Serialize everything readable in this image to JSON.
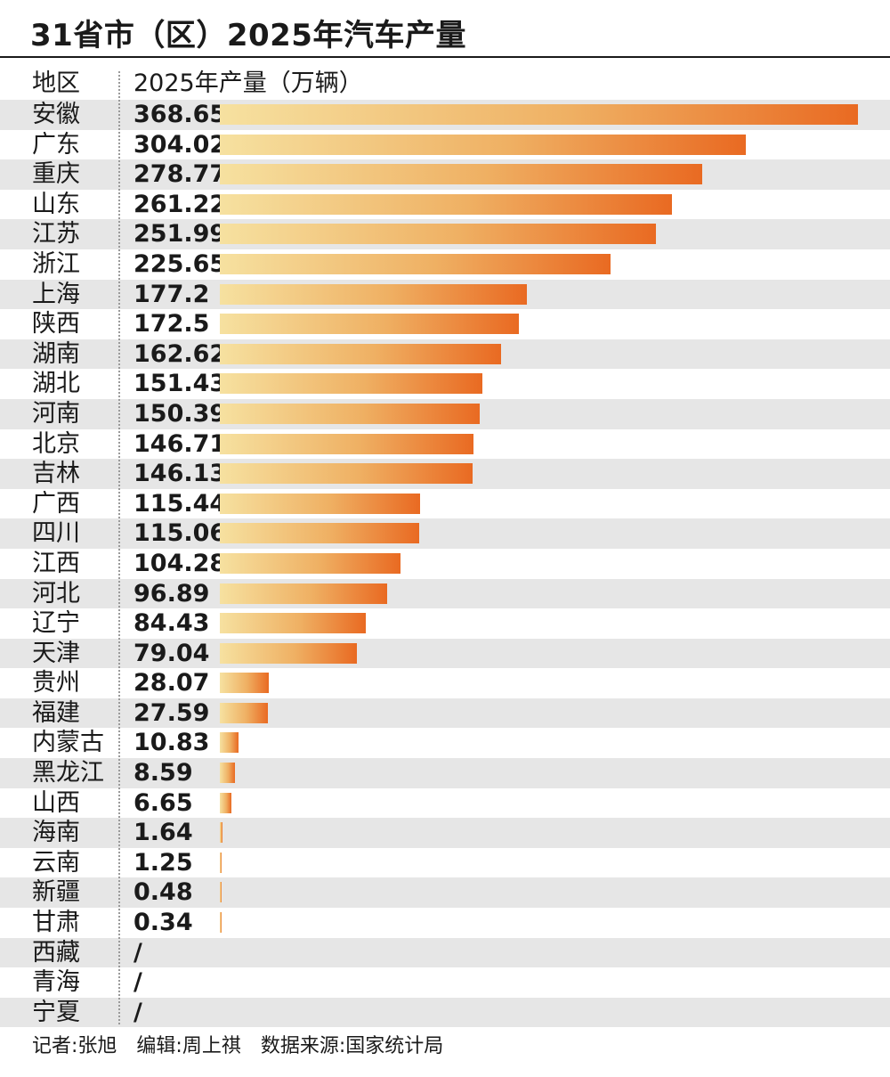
{
  "chart_data": {
    "type": "bar",
    "orientation": "horizontal",
    "title": "31省市（区）2025年汽车产量",
    "column_headers": [
      "地区",
      "2025年产量（万辆）"
    ],
    "categories": [
      "安徽",
      "广东",
      "重庆",
      "山东",
      "江苏",
      "浙江",
      "上海",
      "陕西",
      "湖南",
      "湖北",
      "河南",
      "北京",
      "吉林",
      "广西",
      "四川",
      "江西",
      "河北",
      "辽宁",
      "天津",
      "贵州",
      "福建",
      "内蒙古",
      "黑龙江",
      "山西",
      "海南",
      "云南",
      "新疆",
      "甘肃",
      "西藏",
      "青海",
      "宁夏"
    ],
    "value_labels": [
      "368.65",
      "304.02",
      "278.77",
      "261.22",
      "251.99",
      "225.65",
      "177.2",
      "172.5",
      "162.62",
      "151.43",
      "150.39",
      "146.71",
      "146.13",
      "115.44",
      "115.06",
      "104.28",
      "96.89",
      "84.43",
      "79.04",
      "28.07",
      "27.59",
      "10.83",
      "8.59",
      "6.65",
      "1.64",
      "1.25",
      "0.48",
      "0.34",
      "/",
      "/",
      "/"
    ],
    "values": [
      368.65,
      304.02,
      278.77,
      261.22,
      251.99,
      225.65,
      177.2,
      172.5,
      162.62,
      151.43,
      150.39,
      146.71,
      146.13,
      115.44,
      115.06,
      104.28,
      96.89,
      84.43,
      79.04,
      28.07,
      27.59,
      10.83,
      8.59,
      6.65,
      1.64,
      1.25,
      0.48,
      0.34,
      null,
      null,
      null
    ],
    "xlim": [
      0,
      368.65
    ],
    "grid": false,
    "colors": {
      "bar_start": "#f6e1a0",
      "bar_end": "#e96a22",
      "row_shade": "#e6e6e6"
    },
    "footer": "记者:张旭　编辑:周上祺　数据来源:国家统计局"
  }
}
